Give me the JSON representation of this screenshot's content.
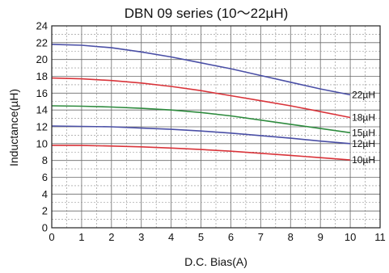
{
  "chart_data": {
    "type": "line",
    "title": "DBN 09 series (10～22µH)",
    "xlabel": "D.C. Bias(A)",
    "ylabel": "Inductance(µH)",
    "xlim": [
      0,
      11
    ],
    "ylim": [
      0,
      24
    ],
    "x_ticks": [
      "0",
      "1",
      "2",
      "3",
      "4",
      "5",
      "6",
      "7",
      "8",
      "9",
      "10",
      "11"
    ],
    "y_ticks": [
      "0",
      "2",
      "4",
      "6",
      "8",
      "10",
      "12",
      "14",
      "16",
      "18",
      "20",
      "22",
      "24"
    ],
    "grid": true,
    "series": [
      {
        "name": "22µH",
        "color": "#4a4fa6",
        "x": [
          0,
          1,
          2,
          3,
          4,
          5,
          6,
          7,
          8,
          9,
          10
        ],
        "y": [
          21.8,
          21.7,
          21.4,
          20.9,
          20.3,
          19.6,
          18.9,
          18.1,
          17.3,
          16.5,
          15.8
        ]
      },
      {
        "name": "18µH",
        "color": "#d9343a",
        "x": [
          0,
          1,
          2,
          3,
          4,
          5,
          6,
          7,
          8,
          9,
          10
        ],
        "y": [
          17.8,
          17.7,
          17.5,
          17.2,
          16.8,
          16.3,
          15.7,
          15.1,
          14.5,
          13.8,
          13.1
        ]
      },
      {
        "name": "15µH",
        "color": "#2e8b3e",
        "x": [
          0,
          1,
          2,
          3,
          4,
          5,
          6,
          7,
          8,
          9,
          10
        ],
        "y": [
          14.5,
          14.45,
          14.35,
          14.2,
          14.0,
          13.7,
          13.3,
          12.8,
          12.3,
          11.8,
          11.3
        ]
      },
      {
        "name": "12µH",
        "color": "#4a4fa6",
        "x": [
          0,
          1,
          2,
          3,
          4,
          5,
          6,
          7,
          8,
          9,
          10
        ],
        "y": [
          12.1,
          12.05,
          12.0,
          11.85,
          11.7,
          11.5,
          11.25,
          10.95,
          10.65,
          10.3,
          10.0
        ]
      },
      {
        "name": "10µH",
        "color": "#d9343a",
        "x": [
          0,
          1,
          2,
          3,
          4,
          5,
          6,
          7,
          8,
          9,
          10
        ],
        "y": [
          9.8,
          9.78,
          9.72,
          9.62,
          9.48,
          9.3,
          9.1,
          8.85,
          8.6,
          8.33,
          8.05
        ]
      }
    ]
  }
}
